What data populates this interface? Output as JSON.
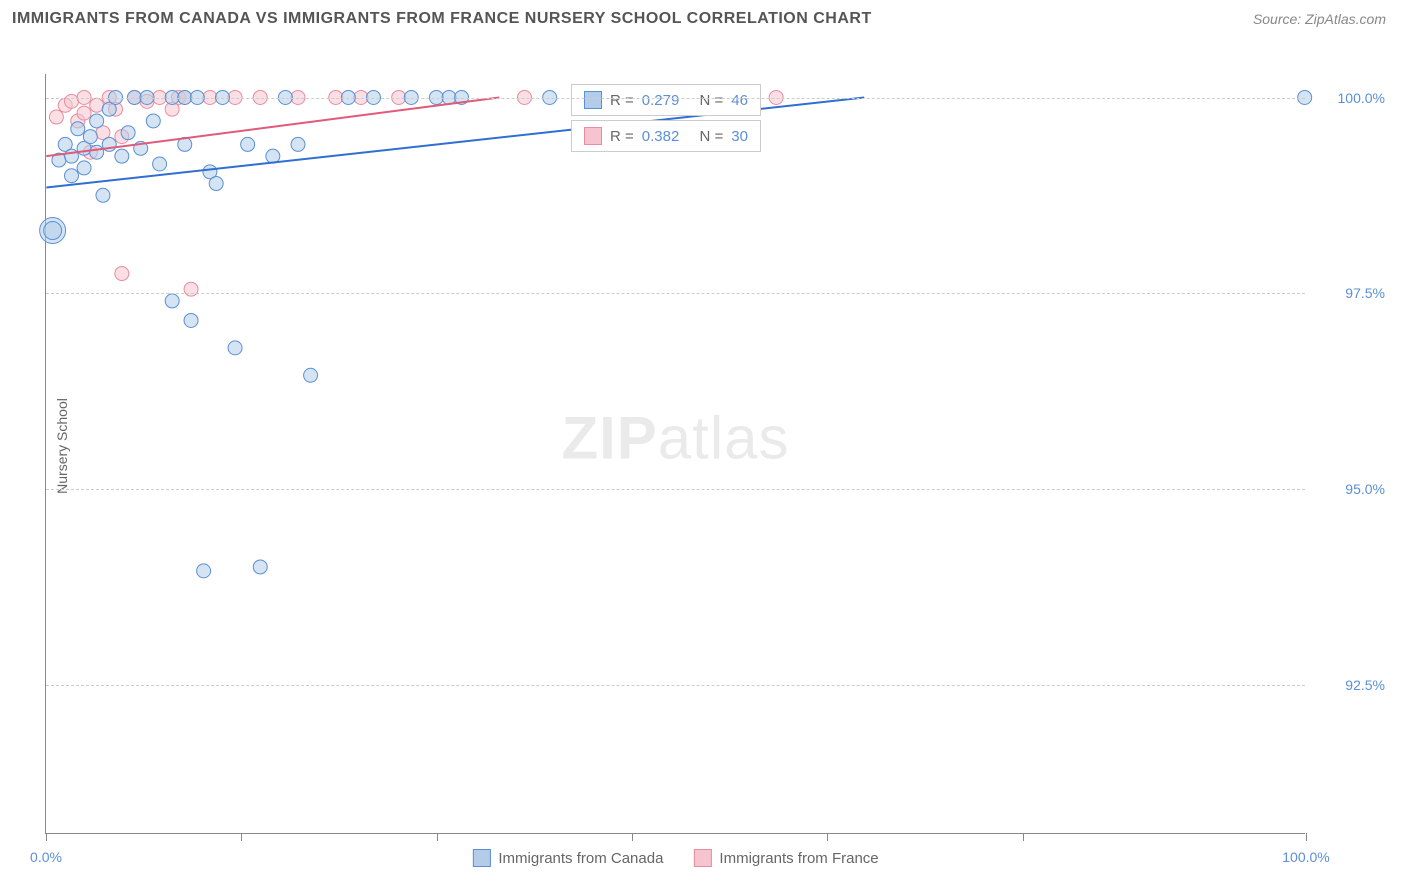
{
  "header": {
    "title": "IMMIGRANTS FROM CANADA VS IMMIGRANTS FROM FRANCE NURSERY SCHOOL CORRELATION CHART",
    "source": "Source: ZipAtlas.com"
  },
  "chart": {
    "type": "scatter",
    "ylabel": "Nursery School",
    "watermark": "ZIPatlas",
    "background_color": "#ffffff",
    "grid_color": "#cccccc",
    "axis_color": "#888888",
    "xlim": [
      0,
      100
    ],
    "ylim": [
      90.6,
      100.3
    ],
    "yticks": [
      {
        "value": 92.5,
        "label": "92.5%"
      },
      {
        "value": 95.0,
        "label": "95.0%"
      },
      {
        "value": 97.5,
        "label": "97.5%"
      },
      {
        "value": 100.0,
        "label": "100.0%"
      }
    ],
    "xticks": [
      0,
      15.5,
      31,
      46.5,
      62,
      77.5,
      100
    ],
    "xtick_labels": {
      "0": "0.0%",
      "100": "100.0%"
    },
    "series": [
      {
        "name": "Immigrants from Canada",
        "color_fill": "#b3cde8",
        "color_stroke": "#5b8fd6",
        "fill_opacity": 0.55,
        "marker_radius": 7,
        "R": "0.279",
        "N": "46",
        "trend": {
          "x1": 0,
          "y1": 98.85,
          "x2": 65,
          "y2": 100.0,
          "color": "#2e6fd1",
          "width": 2
        },
        "points": [
          {
            "x": 0.5,
            "y": 98.3,
            "r": 13
          },
          {
            "x": 0.5,
            "y": 98.3,
            "r": 9
          },
          {
            "x": 1,
            "y": 99.2
          },
          {
            "x": 1.5,
            "y": 99.4
          },
          {
            "x": 2,
            "y": 99.0
          },
          {
            "x": 2,
            "y": 99.25
          },
          {
            "x": 2.5,
            "y": 99.6
          },
          {
            "x": 3,
            "y": 99.1
          },
          {
            "x": 3,
            "y": 99.35
          },
          {
            "x": 3.5,
            "y": 99.5
          },
          {
            "x": 4,
            "y": 99.3
          },
          {
            "x": 4,
            "y": 99.7
          },
          {
            "x": 4.5,
            "y": 98.75
          },
          {
            "x": 5,
            "y": 99.85
          },
          {
            "x": 5,
            "y": 99.4
          },
          {
            "x": 5.5,
            "y": 100.0
          },
          {
            "x": 6,
            "y": 99.25
          },
          {
            "x": 6.5,
            "y": 99.55
          },
          {
            "x": 7,
            "y": 100.0
          },
          {
            "x": 7.5,
            "y": 99.35
          },
          {
            "x": 8,
            "y": 100.0
          },
          {
            "x": 8.5,
            "y": 99.7
          },
          {
            "x": 9,
            "y": 99.15
          },
          {
            "x": 10,
            "y": 100.0
          },
          {
            "x": 10,
            "y": 97.4
          },
          {
            "x": 11,
            "y": 100.0
          },
          {
            "x": 11,
            "y": 99.4
          },
          {
            "x": 11.5,
            "y": 97.15
          },
          {
            "x": 12,
            "y": 100.0
          },
          {
            "x": 12.5,
            "y": 93.95
          },
          {
            "x": 13,
            "y": 99.05
          },
          {
            "x": 13.5,
            "y": 98.9
          },
          {
            "x": 14,
            "y": 100.0
          },
          {
            "x": 15,
            "y": 96.8
          },
          {
            "x": 16,
            "y": 99.4
          },
          {
            "x": 17,
            "y": 94.0
          },
          {
            "x": 18,
            "y": 99.25
          },
          {
            "x": 19,
            "y": 100.0
          },
          {
            "x": 20,
            "y": 99.4
          },
          {
            "x": 21,
            "y": 96.45
          },
          {
            "x": 24,
            "y": 100.0
          },
          {
            "x": 26,
            "y": 100.0
          },
          {
            "x": 29,
            "y": 100.0
          },
          {
            "x": 31,
            "y": 100.0
          },
          {
            "x": 32,
            "y": 100.0
          },
          {
            "x": 33,
            "y": 100.0
          },
          {
            "x": 40,
            "y": 100.0
          },
          {
            "x": 100,
            "y": 100.0
          }
        ]
      },
      {
        "name": "Immigrants from France",
        "color_fill": "#f5c4cf",
        "color_stroke": "#e88ca0",
        "fill_opacity": 0.55,
        "marker_radius": 7,
        "R": "0.382",
        "N": "30",
        "trend": {
          "x1": 0,
          "y1": 99.25,
          "x2": 36,
          "y2": 100.0,
          "color": "#e05a7a",
          "width": 2
        },
        "points": [
          {
            "x": 0.8,
            "y": 99.75
          },
          {
            "x": 1.5,
            "y": 99.9
          },
          {
            "x": 2,
            "y": 99.95
          },
          {
            "x": 2.5,
            "y": 99.7
          },
          {
            "x": 3,
            "y": 99.8
          },
          {
            "x": 3,
            "y": 100.0
          },
          {
            "x": 3.5,
            "y": 99.3
          },
          {
            "x": 4,
            "y": 99.9
          },
          {
            "x": 4.5,
            "y": 99.55
          },
          {
            "x": 5,
            "y": 100.0
          },
          {
            "x": 5.5,
            "y": 99.85
          },
          {
            "x": 6,
            "y": 99.5
          },
          {
            "x": 6,
            "y": 97.75
          },
          {
            "x": 7,
            "y": 100.0
          },
          {
            "x": 8,
            "y": 99.95
          },
          {
            "x": 9,
            "y": 100.0
          },
          {
            "x": 10,
            "y": 99.85
          },
          {
            "x": 10.5,
            "y": 100.0
          },
          {
            "x": 11,
            "y": 100.0
          },
          {
            "x": 11.5,
            "y": 97.55
          },
          {
            "x": 13,
            "y": 100.0
          },
          {
            "x": 15,
            "y": 100.0
          },
          {
            "x": 17,
            "y": 100.0
          },
          {
            "x": 20,
            "y": 100.0
          },
          {
            "x": 23,
            "y": 100.0
          },
          {
            "x": 25,
            "y": 100.0
          },
          {
            "x": 28,
            "y": 100.0
          },
          {
            "x": 38,
            "y": 100.0
          },
          {
            "x": 50,
            "y": 100.0
          },
          {
            "x": 58,
            "y": 100.0
          }
        ]
      }
    ],
    "stat_legends": [
      {
        "series": 0,
        "R_label": "R =",
        "N_label": "N ="
      },
      {
        "series": 1,
        "R_label": "R =",
        "N_label": "N ="
      }
    ],
    "bottom_legend": [
      {
        "series": 0,
        "label": "Immigrants from Canada"
      },
      {
        "series": 1,
        "label": "Immigrants from France"
      }
    ]
  }
}
